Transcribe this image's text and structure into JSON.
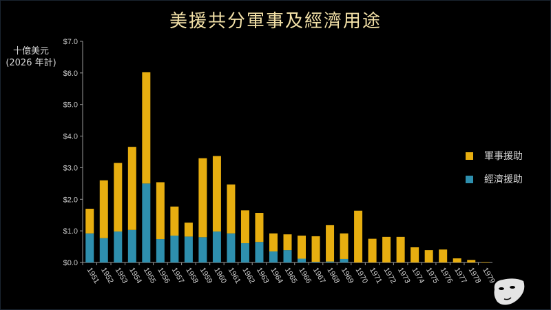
{
  "chart_data": {
    "type": "bar",
    "stacked": true,
    "title": "美援共分軍事及經濟用途",
    "ylabel": [
      "十億美元",
      "(2026 年計)"
    ],
    "xlabel": "",
    "ylim": [
      0,
      7
    ],
    "yticks": [
      "$0.0",
      "$1.0",
      "$2.0",
      "$3.0",
      "$4.0",
      "$5.0",
      "$6.0",
      "$7.0"
    ],
    "grid": false,
    "legend_position": "right",
    "categories": [
      "1951",
      "1952",
      "1953",
      "1954",
      "1955",
      "1956",
      "1957",
      "1958",
      "1959",
      "1960",
      "1961",
      "1962",
      "1963",
      "1964",
      "1965",
      "1966",
      "1967",
      "1968",
      "1969",
      "1970",
      "1971",
      "1972",
      "1973",
      "1974",
      "1975",
      "1976",
      "1977",
      "1978",
      "1979"
    ],
    "series": [
      {
        "name": "經濟援助",
        "color": "#2e8fae",
        "values": [
          0.92,
          0.77,
          0.98,
          1.03,
          2.5,
          0.74,
          0.85,
          0.82,
          0.8,
          0.98,
          0.92,
          0.61,
          0.65,
          0.35,
          0.39,
          0.12,
          0.02,
          0.03,
          0.11,
          0,
          0,
          0,
          0,
          0,
          0,
          0,
          0,
          0,
          0
        ]
      },
      {
        "name": "軍事援助",
        "color": "#e7ae10",
        "values": [
          0.78,
          1.83,
          2.17,
          2.63,
          3.52,
          1.8,
          0.92,
          0.44,
          2.5,
          2.39,
          1.55,
          1.04,
          0.92,
          0.57,
          0.5,
          0.73,
          0.81,
          1.15,
          0.81,
          1.64,
          0.75,
          0.81,
          0.81,
          0.48,
          0.39,
          0.41,
          0.13,
          0.08,
          0.01
        ]
      }
    ],
    "legend_order": [
      "軍事援助",
      "經濟援助"
    ]
  },
  "colors": {
    "title": "#f1dfa6",
    "background": "#000000"
  },
  "logo": "mask-icon"
}
